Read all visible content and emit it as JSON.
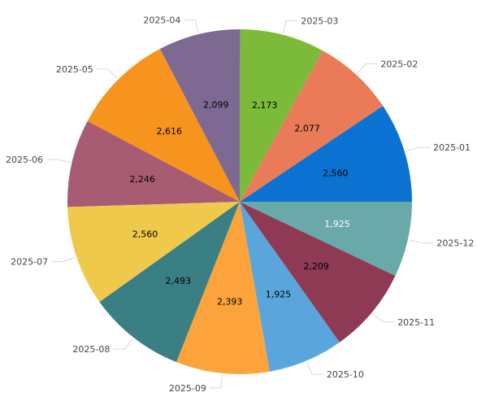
{
  "chart_data": {
    "type": "pie",
    "start_angle_deg": 0,
    "direction": "clockwise",
    "categories": [
      "2025-01",
      "2025-02",
      "2025-03",
      "2025-04",
      "2025-05",
      "2025-06",
      "2025-07",
      "2025-08",
      "2025-09",
      "2025-10",
      "2025-11",
      "2025-12"
    ],
    "values": [
      2560,
      2077,
      2173,
      2099,
      2616,
      2246,
      2560,
      2493,
      2393,
      1925,
      2209,
      1925
    ],
    "value_labels": [
      "2,560",
      "2,077",
      "2,173",
      "2,099",
      "2,616",
      "2,246",
      "2,560",
      "2,493",
      "2,393",
      "1,925",
      "2,209",
      "1,925"
    ],
    "colors": [
      "#0b72d1",
      "#ea7b59",
      "#7cba3a",
      "#7e6992",
      "#f7941d",
      "#a85c73",
      "#efc94c",
      "#3a7f83",
      "#fca43b",
      "#5aa6dc",
      "#8e3a54",
      "#6aa9aa"
    ],
    "label_colors": [
      "#000000",
      "#000000",
      "#000000",
      "#000000",
      "#000000",
      "#000000",
      "#000000",
      "#000000",
      "#000000",
      "#000000",
      "#000000",
      "#ffffff"
    ],
    "legend": "none",
    "labels": "outside with leader lines"
  }
}
